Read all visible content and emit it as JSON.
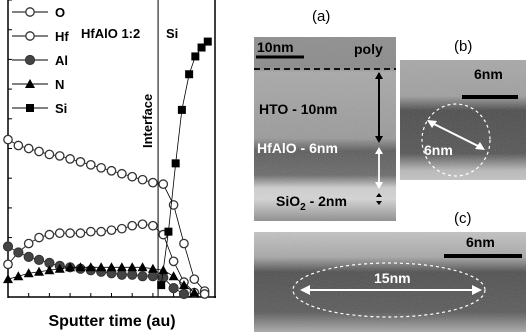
{
  "chart_data": {
    "type": "scatter",
    "title": "",
    "xlabel": "Sputter time (au)",
    "ylabel": "",
    "xlim": [
      0,
      20
    ],
    "ylim": [
      0,
      100
    ],
    "legend_position": "top-left",
    "region_labels": [
      "HfAlO 1:2",
      "Si"
    ],
    "interface_label": "Interface",
    "interface_x": 14.5,
    "series": [
      {
        "name": "O",
        "marker": "open-circle",
        "x": [
          0,
          1,
          2,
          3,
          4,
          5,
          6,
          7,
          8,
          9,
          10,
          11,
          12,
          13,
          14,
          15,
          16,
          17,
          18,
          19
        ],
        "y": [
          53,
          51,
          50,
          49,
          48,
          47.5,
          46.5,
          45.5,
          44.5,
          43.5,
          42.5,
          41.5,
          40.5,
          39.5,
          38.5,
          38,
          31,
          18,
          6,
          2
        ]
      },
      {
        "name": "Hf",
        "marker": "open-circle",
        "x": [
          0,
          1,
          2,
          3,
          4,
          5,
          6,
          7,
          8,
          9,
          10,
          11,
          12,
          13,
          14,
          15,
          16,
          17,
          18,
          19
        ],
        "y": [
          11,
          15,
          18,
          20,
          21,
          21.5,
          21.5,
          21.5,
          22,
          22,
          22.5,
          23,
          24,
          24.5,
          24,
          21,
          12,
          5,
          1.5,
          1
        ]
      },
      {
        "name": "Al",
        "marker": "filled-circle",
        "x": [
          0,
          1,
          2,
          3,
          4,
          5,
          6,
          7,
          8,
          9,
          10,
          11,
          12,
          13,
          14,
          15,
          16,
          17
        ],
        "y": [
          17,
          15,
          13.5,
          12.5,
          11.5,
          10.5,
          10,
          9.5,
          9,
          8.5,
          8,
          7.5,
          7.5,
          7,
          7,
          6.5,
          3,
          1
        ]
      },
      {
        "name": "N",
        "marker": "filled-triangle",
        "x": [
          0,
          1,
          2,
          3,
          4,
          5,
          6,
          7,
          8,
          9,
          10,
          11,
          12,
          13,
          14,
          15,
          16,
          17,
          18
        ],
        "y": [
          6,
          7,
          8,
          8.5,
          9,
          9.5,
          10,
          10,
          10,
          10,
          10,
          10,
          10,
          10,
          9.5,
          9,
          7,
          4,
          1.5
        ]
      },
      {
        "name": "Si",
        "marker": "filled-square",
        "x": [
          14.8,
          15.5,
          16.2,
          16.8,
          17.5,
          18.1,
          18.7,
          19.3
        ],
        "y": [
          4,
          22,
          45,
          63,
          75,
          81,
          84,
          86
        ]
      }
    ]
  },
  "figure": {
    "panels": [
      {
        "letter": "(a)",
        "scalebar": "10nm",
        "labels": {
          "poly": "poly",
          "hto": "HTO - 10nm",
          "hfalo": "HfAlO - 6nm",
          "sio2_main": "SiO",
          "sio2_sub": "2",
          "sio2_tail": " - 2nm"
        }
      },
      {
        "letter": "(b)",
        "scalebar": "6nm",
        "measure": "6nm"
      },
      {
        "letter": "(c)",
        "scalebar": "6nm",
        "measure": "15nm"
      }
    ]
  }
}
